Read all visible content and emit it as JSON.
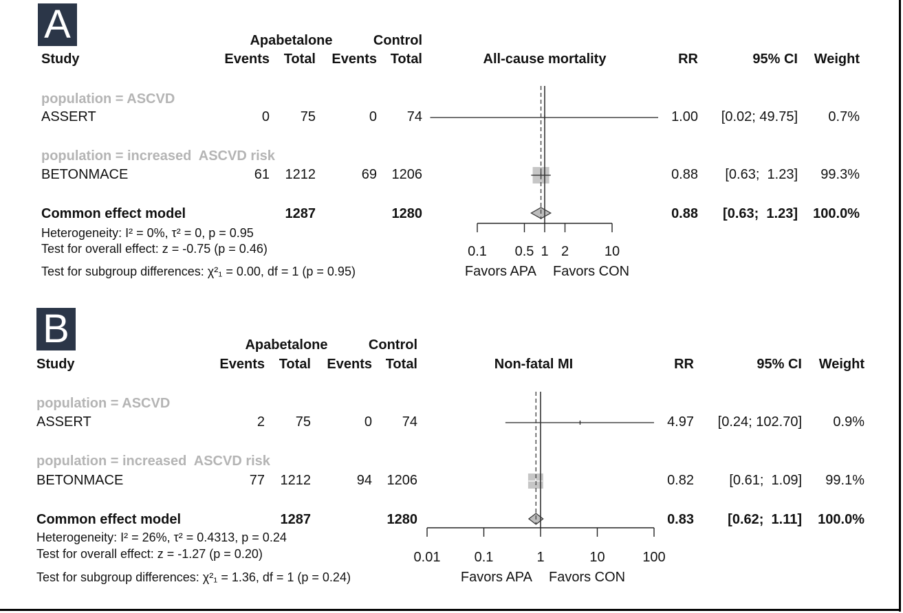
{
  "panels": [
    {
      "label": "A",
      "header": {
        "study": "Study",
        "group1": "Apabetalone",
        "group2": "Control",
        "events": "Events",
        "total": "Total",
        "outcome": "All-cause mortality",
        "rr": "RR",
        "ci": "95% CI",
        "weight": "Weight"
      },
      "subgroups": [
        {
          "label": "population = ASCVD",
          "studies": [
            {
              "name": "ASSERT",
              "e1": "0",
              "n1": "75",
              "e2": "0",
              "n2": "74",
              "rr": "1.00",
              "ci": "[0.02; 49.75]",
              "weight": "0.7%"
            }
          ]
        },
        {
          "label": "population = increased  ASCVD risk",
          "studies": [
            {
              "name": "BETONMACE",
              "e1": "61",
              "n1": "1212",
              "e2": "69",
              "n2": "1206",
              "rr": "0.88",
              "ci": "[0.63;  1.23]",
              "weight": "99.3%"
            }
          ]
        }
      ],
      "pooled": {
        "label": "Common effect model",
        "n1": "1287",
        "n2": "1280",
        "rr": "0.88",
        "ci": "[0.63;  1.23]",
        "weight": "100.0%"
      },
      "stats": [
        "Heterogeneity: I² = 0%, τ² = 0, p = 0.95",
        "Test for overall effect: z = -0.75 (p = 0.46)",
        "Test for subgroup differences: χ²₁ = 0.00, df = 1 (p = 0.95)"
      ],
      "axis": {
        "ticks": [
          "0.1",
          "0.5",
          "1",
          "2",
          "10"
        ],
        "favors_left": "Favors APA",
        "favors_right": "Favors CON"
      }
    },
    {
      "label": "B",
      "header": {
        "study": "Study",
        "group1": "Apabetalone",
        "group2": "Control",
        "events": "Events",
        "total": "Total",
        "outcome": "Non-fatal MI",
        "rr": "RR",
        "ci": "95% CI",
        "weight": "Weight"
      },
      "subgroups": [
        {
          "label": "population = ASCVD",
          "studies": [
            {
              "name": "ASSERT",
              "e1": "2",
              "n1": "75",
              "e2": "0",
              "n2": "74",
              "rr": "4.97",
              "ci": "[0.24; 102.70]",
              "weight": "0.9%"
            }
          ]
        },
        {
          "label": "population = increased  ASCVD risk",
          "studies": [
            {
              "name": "BETONMACE",
              "e1": "77",
              "n1": "1212",
              "e2": "94",
              "n2": "1206",
              "rr": "0.82",
              "ci": "[0.61;  1.09]",
              "weight": "99.1%"
            }
          ]
        }
      ],
      "pooled": {
        "label": "Common effect model",
        "n1": "1287",
        "n2": "1280",
        "rr": "0.83",
        "ci": "[0.62;  1.11]",
        "weight": "100.0%"
      },
      "stats": [
        "Heterogeneity: I² = 26%, τ² = 0.4313, p = 0.24",
        "Test for overall effect: z = -1.27 (p = 0.20)",
        "Test for subgroup differences: χ²₁ = 1.36, df = 1 (p = 0.24)"
      ],
      "axis": {
        "ticks": [
          "0.01",
          "0.1",
          "1",
          "10",
          "100"
        ],
        "favors_left": "Favors APA",
        "favors_right": "Favors CON"
      }
    }
  ],
  "chart_data": [
    {
      "type": "forest",
      "title": "All-cause mortality",
      "scale": "log",
      "xlim": [
        0.1,
        10
      ],
      "studies": [
        {
          "name": "ASSERT",
          "rr": 1.0,
          "lower": 0.02,
          "upper": 49.75,
          "weight": 0.7
        },
        {
          "name": "BETONMACE",
          "rr": 0.88,
          "lower": 0.63,
          "upper": 1.23,
          "weight": 99.3
        }
      ],
      "pooled": {
        "rr": 0.88,
        "lower": 0.63,
        "upper": 1.23
      },
      "tick_values": [
        0.1,
        0.5,
        1,
        2,
        10
      ]
    },
    {
      "type": "forest",
      "title": "Non-fatal MI",
      "scale": "log",
      "xlim": [
        0.01,
        100
      ],
      "studies": [
        {
          "name": "ASSERT",
          "rr": 4.97,
          "lower": 0.24,
          "upper": 102.7,
          "weight": 0.9
        },
        {
          "name": "BETONMACE",
          "rr": 0.82,
          "lower": 0.61,
          "upper": 1.09,
          "weight": 99.1
        }
      ],
      "pooled": {
        "rr": 0.83,
        "lower": 0.62,
        "upper": 1.11
      },
      "tick_values": [
        0.01,
        0.1,
        1,
        10,
        100
      ]
    }
  ]
}
